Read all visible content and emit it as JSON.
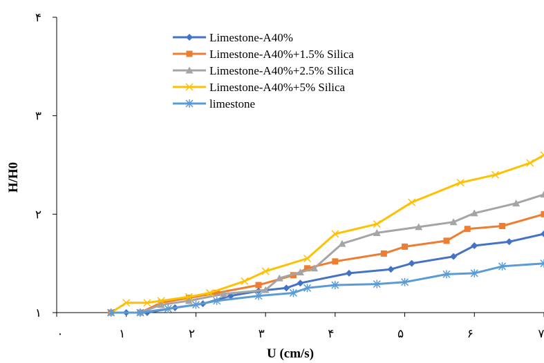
{
  "chart_data": {
    "type": "line",
    "title": "",
    "xlabel": "U (cm/s)",
    "ylabel": "H/H0",
    "xlim": [
      0,
      7
    ],
    "ylim": [
      1,
      4
    ],
    "x_ticks": [
      0,
      1,
      2,
      3,
      4,
      5,
      6,
      7
    ],
    "x_tick_labels": [
      "۰",
      "۱",
      "۲",
      "۳",
      "۴",
      "۵",
      "۶",
      "۷"
    ],
    "y_ticks": [
      1,
      2,
      3,
      4
    ],
    "y_tick_labels": [
      "۱",
      "۲",
      "۳",
      "۴"
    ],
    "grid": false,
    "legend_position": "top-left",
    "series": [
      {
        "name": "Limestone-A40%",
        "color": "#4472C4",
        "marker": "diamond",
        "x": [
          0.78,
          1.0,
          1.2,
          1.3,
          1.7,
          2.1,
          2.5,
          2.9,
          3.3,
          3.5,
          4.2,
          4.8,
          5.1,
          5.7,
          6.0,
          6.5,
          7.0
        ],
        "y": [
          1.0,
          1.0,
          1.0,
          1.0,
          1.05,
          1.09,
          1.17,
          1.22,
          1.25,
          1.3,
          1.4,
          1.44,
          1.5,
          1.57,
          1.68,
          1.72,
          1.8
        ]
      },
      {
        "name": "Limestone-A40%+1.5% Silica",
        "color": "#ED7D31",
        "marker": "square",
        "x": [
          0.78,
          1.2,
          1.5,
          1.9,
          2.3,
          2.9,
          3.4,
          3.6,
          4.0,
          4.7,
          5.0,
          5.6,
          5.9,
          6.4,
          7.0
        ],
        "y": [
          1.0,
          1.0,
          1.1,
          1.15,
          1.2,
          1.28,
          1.38,
          1.45,
          1.52,
          1.6,
          1.67,
          1.73,
          1.85,
          1.88,
          2.0
        ]
      },
      {
        "name": "Limestone-A40%+2.5% Silica",
        "color": "#A5A5A5",
        "marker": "triangle",
        "x": [
          0.78,
          1.2,
          1.5,
          1.9,
          2.4,
          3.0,
          3.2,
          3.5,
          3.7,
          4.1,
          4.6,
          5.2,
          5.7,
          6.0,
          6.6,
          7.0
        ],
        "y": [
          1.0,
          1.0,
          1.08,
          1.12,
          1.19,
          1.23,
          1.35,
          1.41,
          1.45,
          1.7,
          1.81,
          1.87,
          1.92,
          2.01,
          2.11,
          2.2
        ]
      },
      {
        "name": "Limestone-A40%+5% Silica",
        "color": "#FFC000",
        "marker": "x",
        "x": [
          0.78,
          1.0,
          1.3,
          1.5,
          1.9,
          2.2,
          2.7,
          3.0,
          3.6,
          4.0,
          4.6,
          5.1,
          5.8,
          6.3,
          6.8,
          7.0
        ],
        "y": [
          1.0,
          1.1,
          1.1,
          1.12,
          1.16,
          1.2,
          1.32,
          1.42,
          1.55,
          1.8,
          1.9,
          2.12,
          2.32,
          2.4,
          2.52,
          2.6
        ]
      },
      {
        "name": "limestone",
        "color": "#5B9BD5",
        "marker": "asterisk",
        "x": [
          0.78,
          1.2,
          1.6,
          2.0,
          2.3,
          2.9,
          3.4,
          3.6,
          4.0,
          4.6,
          5.0,
          5.6,
          6.0,
          6.4,
          7.0
        ],
        "y": [
          1.0,
          1.0,
          1.04,
          1.08,
          1.12,
          1.17,
          1.2,
          1.25,
          1.28,
          1.29,
          1.31,
          1.39,
          1.4,
          1.47,
          1.5
        ]
      }
    ]
  }
}
